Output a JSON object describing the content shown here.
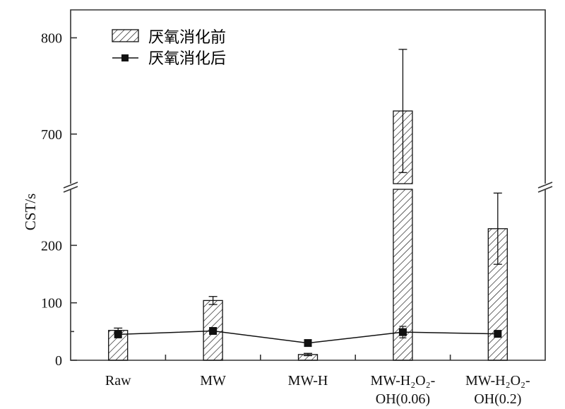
{
  "chart_data": {
    "type": "bar",
    "title": "",
    "xlabel": "",
    "ylabel": "CST/s",
    "axis_break": [
      300,
      647
    ],
    "ylim_lower": [
      0,
      300
    ],
    "ylim_upper": [
      647,
      829
    ],
    "yticks_lower": [
      0,
      100,
      200
    ],
    "yticks_upper": [
      700,
      800
    ],
    "ytick_labels": [
      "0",
      "100",
      "200",
      "700",
      "800"
    ],
    "grid": false,
    "legend_position": "top-left",
    "categories": [
      "Raw",
      "MW",
      "MW-H",
      "MW-H₂O₂-OH(0.06)",
      "MW-H₂O₂-OH(0.2)"
    ],
    "category_label_lines": [
      [
        "Raw"
      ],
      [
        "MW"
      ],
      [
        "MW-H"
      ],
      [
        "MW-H₂O₂-",
        "OH(0.06)"
      ],
      [
        "MW-H₂O₂-",
        "OH(0.2)"
      ]
    ],
    "series": [
      {
        "name": "厌氧消化前",
        "kind": "bar",
        "pattern": "hatched",
        "values": [
          52,
          104,
          10,
          724,
          229
        ],
        "errors": [
          4,
          7,
          2,
          64,
          62
        ]
      },
      {
        "name": "厌氧消化后",
        "kind": "line",
        "marker": "square",
        "values": [
          45,
          51,
          30,
          49,
          46
        ],
        "errors": [
          3,
          3,
          2,
          10,
          3
        ]
      }
    ],
    "colors": {
      "axis": "#333333",
      "bar_hatch": "#111111",
      "line": "#111111"
    }
  }
}
